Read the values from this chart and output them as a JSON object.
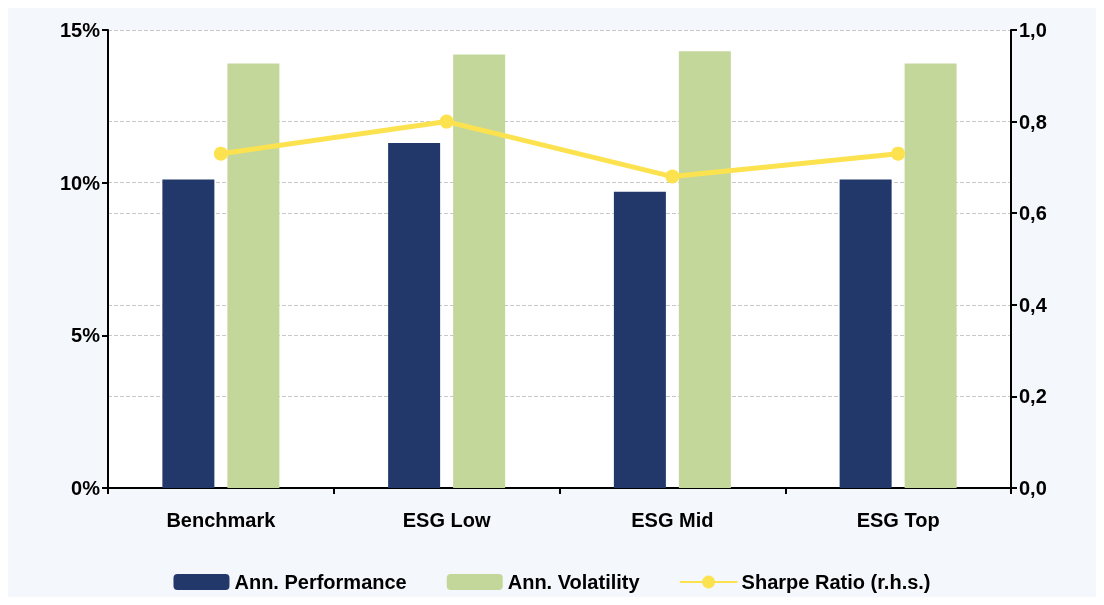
{
  "chart_data": {
    "type": "bar",
    "categories": [
      "Benchmark",
      "ESG Low",
      "ESG Mid",
      "ESG Top"
    ],
    "series": [
      {
        "name": "Ann. Performance",
        "color": "#22386b",
        "values": [
          10.1,
          11.3,
          9.7,
          10.1
        ]
      },
      {
        "name": "Ann. Volatility",
        "color": "#c4d79b",
        "values": [
          13.9,
          14.2,
          14.3,
          13.9
        ]
      },
      {
        "name": "Sharpe Ratio (r.h.s.)",
        "type": "line",
        "axis": "y2",
        "color": "#fde24f",
        "values": [
          0.73,
          0.8,
          0.68,
          0.73
        ]
      }
    ],
    "ylim": [
      0,
      15
    ],
    "yticks": [
      {
        "value": 0,
        "label": "0%"
      },
      {
        "value": 5,
        "label": "5%"
      },
      {
        "value": 10,
        "label": "10%"
      },
      {
        "value": 15,
        "label": "15%"
      }
    ],
    "y2lim": [
      0,
      1
    ],
    "y2ticks": [
      {
        "value": 0,
        "label": "0,0"
      },
      {
        "value": 0.2,
        "label": "0,2"
      },
      {
        "value": 0.4,
        "label": "0,4"
      },
      {
        "value": 0.6,
        "label": "0,6"
      },
      {
        "value": 0.8,
        "label": "0,8"
      },
      {
        "value": 1,
        "label": "1,0"
      }
    ],
    "grid": "y",
    "legend": "bottom",
    "marker": "circle",
    "line_style": "solid"
  }
}
